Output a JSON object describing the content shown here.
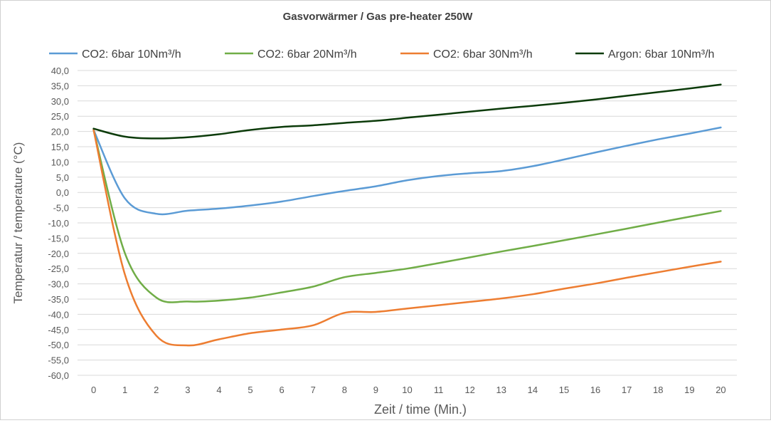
{
  "chart_data": {
    "type": "line",
    "title": "Gasvorwärmer / Gas pre-heater 250W",
    "xlabel": "Zeit / time (Min.)",
    "ylabel": "Temperatur / temperature (°C)",
    "x": [
      0,
      1,
      2,
      3,
      4,
      5,
      6,
      7,
      8,
      9,
      10,
      11,
      12,
      13,
      14,
      15,
      16,
      17,
      18,
      19,
      20
    ],
    "x_tick_labels": [
      "0",
      "1",
      "2",
      "3",
      "4",
      "5",
      "6",
      "7",
      "8",
      "9",
      "10",
      "11",
      "12",
      "13",
      "14",
      "15",
      "16",
      "17",
      "18",
      "19",
      "20"
    ],
    "ylim": [
      -60,
      40
    ],
    "y_tick_labels": [
      "40,0",
      "35,0",
      "30,0",
      "25,0",
      "20,0",
      "15,0",
      "10,0",
      "5,0",
      "0,0",
      "-5,0",
      "-10,0",
      "-15,0",
      "-20,0",
      "-25,0",
      "-30,0",
      "-35,0",
      "-40,0",
      "-45,0",
      "-50,0",
      "-55,0",
      "-60,0"
    ],
    "y_ticks": [
      40,
      35,
      30,
      25,
      20,
      15,
      10,
      5,
      0,
      -5,
      -10,
      -15,
      -20,
      -25,
      -30,
      -35,
      -40,
      -45,
      -50,
      -55,
      -60
    ],
    "grid": true,
    "legend_position": "top",
    "series": [
      {
        "name": "CO2: 6bar 10Nm³/h",
        "color": "#5b9bd5",
        "values": [
          20.5,
          -2.0,
          -7.0,
          -6.0,
          -5.3,
          -4.3,
          -3.0,
          -1.2,
          0.5,
          2.0,
          4.0,
          5.4,
          6.3,
          7.0,
          8.6,
          10.8,
          13.1,
          15.3,
          17.4,
          19.3,
          21.3
        ]
      },
      {
        "name": "CO2: 6bar 20Nm³/h",
        "color": "#70ad47",
        "values": [
          20.5,
          -20.0,
          -34.5,
          -35.8,
          -35.5,
          -34.5,
          -32.8,
          -30.9,
          -27.8,
          -26.4,
          -25.0,
          -23.2,
          -21.3,
          -19.4,
          -17.6,
          -15.7,
          -13.8,
          -11.9,
          -9.9,
          -8.0,
          -6.1
        ]
      },
      {
        "name": "CO2: 6bar 30Nm³/h",
        "color": "#ed7d31",
        "values": [
          20.5,
          -27.0,
          -47.0,
          -50.2,
          -48.2,
          -46.2,
          -45.0,
          -43.6,
          -39.5,
          -39.2,
          -38.1,
          -37.0,
          -35.9,
          -34.8,
          -33.4,
          -31.6,
          -29.9,
          -28.0,
          -26.2,
          -24.4,
          -22.7
        ]
      },
      {
        "name": "Argon: 6bar 10Nm³/h",
        "color": "#0c3b0a",
        "values": [
          20.9,
          18.3,
          17.7,
          18.1,
          19.1,
          20.5,
          21.5,
          22.0,
          22.8,
          23.5,
          24.5,
          25.5,
          26.5,
          27.5,
          28.4,
          29.4,
          30.5,
          31.7,
          32.9,
          34.1,
          35.4
        ]
      }
    ]
  }
}
